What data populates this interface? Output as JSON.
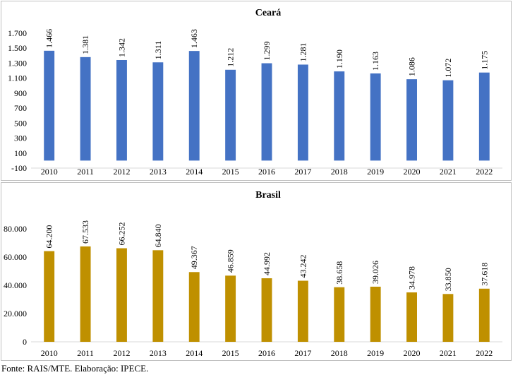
{
  "chart_data": [
    {
      "type": "bar",
      "title": "Ceará",
      "categories": [
        "2010",
        "2011",
        "2012",
        "2013",
        "2014",
        "2015",
        "2016",
        "2017",
        "2018",
        "2019",
        "2020",
        "2021",
        "2022"
      ],
      "values": [
        1466,
        1381,
        1342,
        1311,
        1463,
        1212,
        1299,
        1281,
        1190,
        1163,
        1086,
        1072,
        1175
      ],
      "value_labels": [
        "1.466",
        "1.381",
        "1.342",
        "1.311",
        "1.463",
        "1.212",
        "1.299",
        "1.281",
        "1.190",
        "1.163",
        "1.086",
        "1.072",
        "1.175"
      ],
      "y_ticks": [
        -100,
        100,
        300,
        500,
        700,
        900,
        1100,
        1300,
        1500,
        1700
      ],
      "y_tick_labels": [
        "-100",
        "100",
        "300",
        "500",
        "700",
        "900",
        "1.100",
        "1.300",
        "1.500",
        "1.700"
      ],
      "ylim": [
        -100,
        1700
      ],
      "xlabel": "",
      "ylabel": "",
      "grid": false,
      "bar_color": "#4472c4"
    },
    {
      "type": "bar",
      "title": "Brasil",
      "categories": [
        "2010",
        "2011",
        "2012",
        "2013",
        "2014",
        "2015",
        "2016",
        "2017",
        "2018",
        "2019",
        "2020",
        "2021",
        "2022"
      ],
      "values": [
        64200,
        67533,
        66252,
        64840,
        49367,
        46859,
        44992,
        43242,
        38658,
        39026,
        34978,
        33850,
        37618
      ],
      "value_labels": [
        "64.200",
        "67.533",
        "66.252",
        "64.840",
        "49.367",
        "46.859",
        "44.992",
        "43.242",
        "38.658",
        "39.026",
        "34.978",
        "33.850",
        "37.618"
      ],
      "y_ticks": [
        0,
        20000,
        40000,
        60000,
        80000
      ],
      "y_tick_labels": [
        "0",
        "20.000",
        "40.000",
        "60.000",
        "80.000"
      ],
      "ylim": [
        0,
        80000
      ],
      "xlabel": "",
      "ylabel": "",
      "grid": false,
      "bar_color": "#bf9000"
    }
  ],
  "source_note": "Fonte: RAIS/MTE. Elaboração: IPECE."
}
